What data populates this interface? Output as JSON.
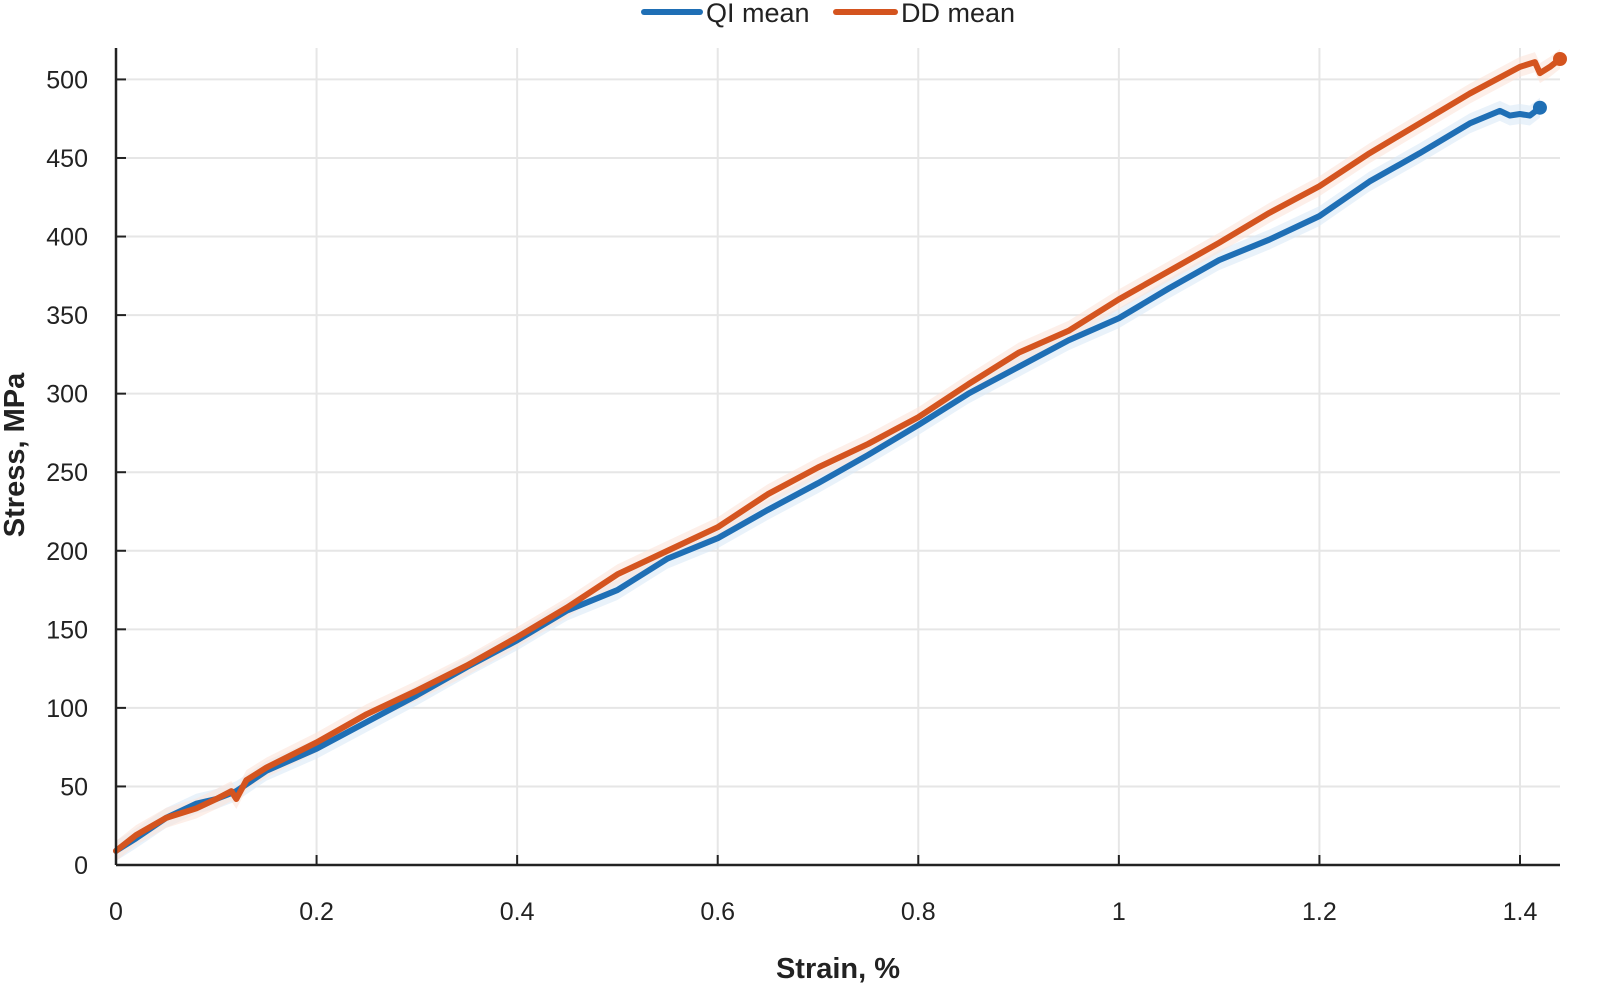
{
  "chart_data": {
    "type": "line",
    "title": "",
    "xlabel": "Strain, %",
    "ylabel": "Stress, MPa",
    "xlim": [
      0,
      1.44
    ],
    "ylim": [
      0,
      520
    ],
    "xticks": [
      0,
      0.2,
      0.4,
      0.6,
      0.8,
      1,
      1.2,
      1.4
    ],
    "xtick_labels": [
      "0",
      "0.2",
      "0.4",
      "0.6",
      "0.8",
      "1",
      "1.2",
      "1.4"
    ],
    "yticks": [
      0,
      50,
      100,
      150,
      200,
      250,
      300,
      350,
      400,
      450,
      500
    ],
    "ytick_labels": [
      "0",
      "50",
      "100",
      "150",
      "200",
      "250",
      "300",
      "350",
      "400",
      "450",
      "500"
    ],
    "grid": true,
    "legend_position": "top-center",
    "series": [
      {
        "name": "QI mean",
        "color": "#1f6fb5",
        "band_color": "#dbeaf7",
        "x": [
          0,
          0.02,
          0.05,
          0.08,
          0.1,
          0.12,
          0.15,
          0.2,
          0.25,
          0.3,
          0.35,
          0.4,
          0.45,
          0.5,
          0.55,
          0.6,
          0.65,
          0.7,
          0.75,
          0.8,
          0.85,
          0.9,
          0.95,
          1.0,
          1.05,
          1.1,
          1.15,
          1.2,
          1.25,
          1.3,
          1.35,
          1.38,
          1.39,
          1.4,
          1.41,
          1.42
        ],
        "y": [
          9,
          17,
          30,
          39,
          42,
          47,
          60,
          74,
          91,
          108,
          126,
          143,
          162,
          175,
          195,
          208,
          226,
          243,
          261,
          280,
          300,
          317,
          334,
          348,
          367,
          385,
          398,
          413,
          435,
          453,
          472,
          480,
          477,
          478,
          477,
          482
        ],
        "end_marker": [
          1.42,
          482
        ]
      },
      {
        "name": "DD mean",
        "color": "#d4541f",
        "band_color": "#fbe5db",
        "x": [
          0,
          0.02,
          0.05,
          0.08,
          0.1,
          0.115,
          0.12,
          0.13,
          0.15,
          0.2,
          0.25,
          0.3,
          0.35,
          0.4,
          0.45,
          0.5,
          0.55,
          0.6,
          0.65,
          0.7,
          0.75,
          0.8,
          0.85,
          0.9,
          0.95,
          1.0,
          1.05,
          1.1,
          1.15,
          1.2,
          1.25,
          1.3,
          1.35,
          1.4,
          1.415,
          1.42,
          1.43,
          1.44
        ],
        "y": [
          9,
          19,
          30,
          36,
          42,
          47,
          42,
          54,
          62,
          78,
          96,
          111,
          127,
          145,
          164,
          185,
          200,
          215,
          236,
          253,
          268,
          285,
          306,
          326,
          340,
          360,
          378,
          396,
          415,
          432,
          453,
          472,
          491,
          508,
          511,
          504,
          508,
          513
        ],
        "end_marker": [
          1.44,
          513
        ]
      }
    ]
  }
}
